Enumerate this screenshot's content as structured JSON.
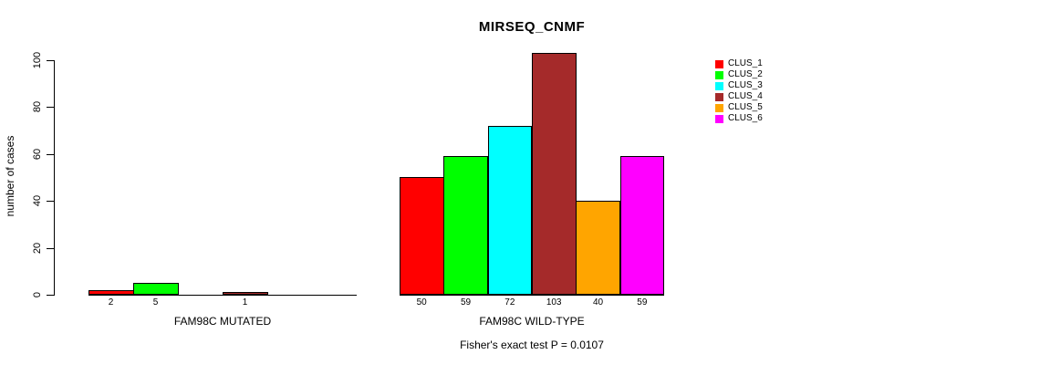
{
  "chart_data": {
    "type": "bar",
    "title": "MIRSEQ_CNMF",
    "ylabel": "number of cases",
    "subtitle": "Fisher's exact test P = 0.0107",
    "ylim": [
      0,
      100
    ],
    "yticks": [
      0,
      20,
      40,
      60,
      80,
      100
    ],
    "grid": false,
    "legend_position": "right",
    "categories": [
      "FAM98C MUTATED",
      "FAM98C WILD-TYPE"
    ],
    "legend": [
      {
        "label": "CLUS_1",
        "color": "#FF0000"
      },
      {
        "label": "CLUS_2",
        "color": "#00FF00"
      },
      {
        "label": "CLUS_3",
        "color": "#00FFFF"
      },
      {
        "label": "CLUS_4",
        "color": "#A52A2A"
      },
      {
        "label": "CLUS_5",
        "color": "#FFA500"
      },
      {
        "label": "CLUS_6",
        "color": "#FF00FF"
      }
    ],
    "series": [
      {
        "name": "CLUS_1",
        "values": [
          2,
          50
        ]
      },
      {
        "name": "CLUS_2",
        "values": [
          5,
          59
        ]
      },
      {
        "name": "CLUS_3",
        "values": [
          0,
          72
        ]
      },
      {
        "name": "CLUS_4",
        "values": [
          1,
          103
        ]
      },
      {
        "name": "CLUS_5",
        "values": [
          0,
          40
        ]
      },
      {
        "name": "CLUS_6",
        "values": [
          0,
          59
        ]
      }
    ],
    "bar_value_labels": {
      "FAM98C MUTATED": [
        "2",
        "5",
        "1"
      ],
      "FAM98C WILD-TYPE": [
        "50",
        "59",
        "72",
        "103",
        "40",
        "59"
      ]
    }
  }
}
